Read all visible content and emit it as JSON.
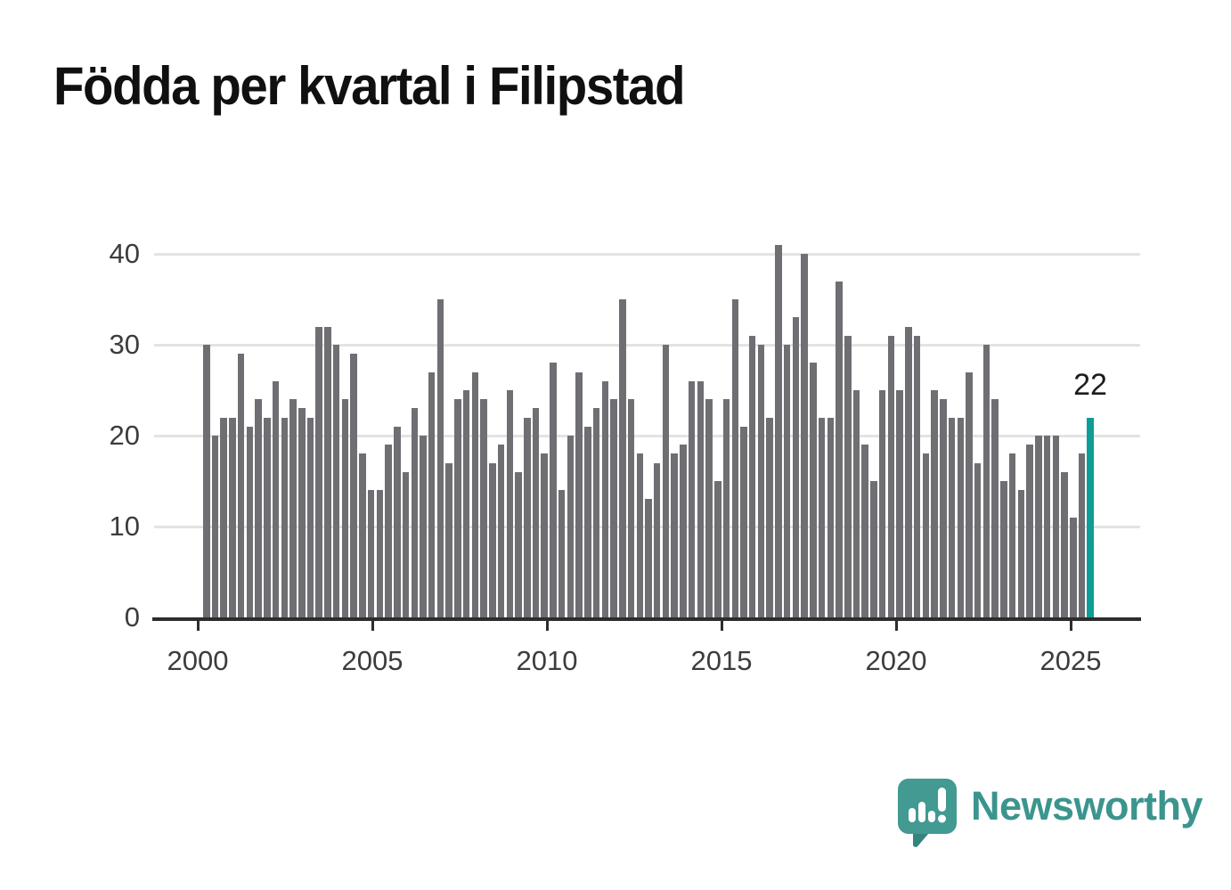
{
  "title": "Födda per kvartal i Filipstad",
  "annotation": {
    "label": "22"
  },
  "brand": {
    "name": "Newsworthy",
    "color": "#3b958e"
  },
  "chart_data": {
    "type": "bar",
    "title": "Födda per kvartal i Filipstad",
    "x_unit": "quarter",
    "x_range": [
      "2000 Q1",
      "2025 Q3"
    ],
    "x_tick_labels": [
      "2000",
      "2005",
      "2010",
      "2015",
      "2020",
      "2025"
    ],
    "y_tick_labels": [
      "0",
      "10",
      "20",
      "30",
      "40"
    ],
    "ylim": [
      0,
      40
    ],
    "grid": "horizontal",
    "bar_color": "#6e6e73",
    "years": [
      {
        "year": 2000,
        "values": [
          30,
          20,
          22,
          22
        ]
      },
      {
        "year": 2001,
        "values": [
          29,
          21,
          24,
          22
        ]
      },
      {
        "year": 2002,
        "values": [
          26,
          22,
          24,
          23
        ]
      },
      {
        "year": 2003,
        "values": [
          22,
          32,
          32,
          30
        ]
      },
      {
        "year": 2004,
        "values": [
          24,
          29,
          18,
          14
        ]
      },
      {
        "year": 2005,
        "values": [
          14,
          19,
          21,
          16
        ]
      },
      {
        "year": 2006,
        "values": [
          23,
          20,
          27,
          35
        ]
      },
      {
        "year": 2007,
        "values": [
          17,
          24,
          25,
          27
        ]
      },
      {
        "year": 2008,
        "values": [
          24,
          17,
          19,
          25
        ]
      },
      {
        "year": 2009,
        "values": [
          16,
          22,
          23,
          18
        ]
      },
      {
        "year": 2010,
        "values": [
          28,
          14,
          20,
          27
        ]
      },
      {
        "year": 2011,
        "values": [
          21,
          23,
          26,
          24
        ]
      },
      {
        "year": 2012,
        "values": [
          35,
          24,
          18,
          13
        ]
      },
      {
        "year": 2013,
        "values": [
          17,
          30,
          18,
          19
        ]
      },
      {
        "year": 2014,
        "values": [
          26,
          26,
          24,
          15
        ]
      },
      {
        "year": 2015,
        "values": [
          24,
          35,
          21,
          31
        ]
      },
      {
        "year": 2016,
        "values": [
          30,
          22,
          41,
          30
        ]
      },
      {
        "year": 2017,
        "values": [
          33,
          40,
          28,
          22
        ]
      },
      {
        "year": 2018,
        "values": [
          22,
          37,
          31,
          25
        ]
      },
      {
        "year": 2019,
        "values": [
          19,
          15,
          25,
          31
        ]
      },
      {
        "year": 2020,
        "values": [
          25,
          32,
          31,
          18
        ]
      },
      {
        "year": 2021,
        "values": [
          25,
          24,
          22,
          22
        ]
      },
      {
        "year": 2022,
        "values": [
          27,
          17,
          30,
          24
        ]
      },
      {
        "year": 2023,
        "values": [
          15,
          18,
          14,
          19
        ]
      },
      {
        "year": 2024,
        "values": [
          20,
          20,
          20,
          16
        ]
      },
      {
        "year": 2025,
        "values": [
          11,
          18,
          22
        ]
      }
    ],
    "highlight": {
      "x": "2025 Q3",
      "value": 22,
      "label": "22",
      "color": "#0f9d97"
    }
  }
}
